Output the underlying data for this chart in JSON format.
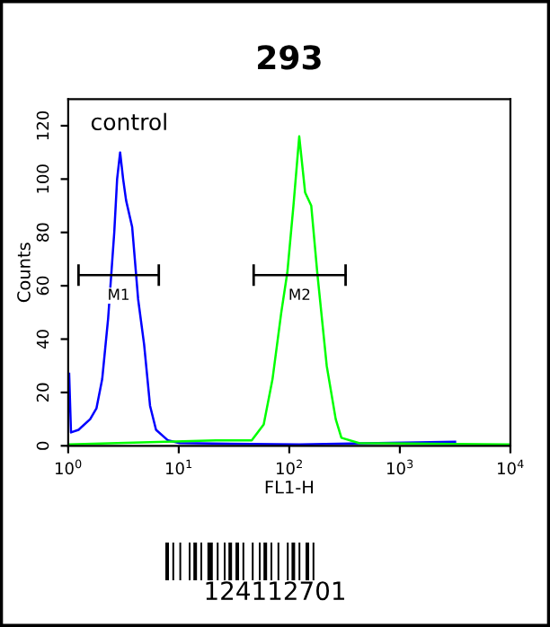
{
  "chart_data": {
    "type": "line",
    "title": "293",
    "xlabel": "FL1-H",
    "ylabel": "Counts",
    "log": "x",
    "xlim": [
      1,
      10000
    ],
    "ylim": [
      0,
      130
    ],
    "xticks": [
      {
        "value": 1,
        "label": "10$^{0}$"
      },
      {
        "value": 10,
        "label": "10$^{1}$"
      },
      {
        "value": 100,
        "label": "10$^{2}$"
      },
      {
        "value": 1000,
        "label": "10$^{3}$"
      },
      {
        "value": 10000,
        "label": "10$^{4}$"
      }
    ],
    "yticks": [
      0,
      20,
      40,
      60,
      80,
      100,
      120
    ],
    "grid": false,
    "legend": false,
    "marker": "none",
    "line_style": "solid",
    "series": [
      {
        "color": "#0000ff",
        "x": [
          1.02,
          1.06,
          1.24,
          1.58,
          1.8,
          2.03,
          2.3,
          2.61,
          2.77,
          2.95,
          3.14,
          3.34,
          3.79,
          4.29,
          4.86,
          5.5,
          6.23,
          8.0,
          10.2,
          123,
          3160
        ],
        "values": [
          27,
          5,
          6,
          10,
          14,
          25,
          48,
          80,
          100,
          110,
          100,
          92,
          82,
          55,
          38,
          15,
          6,
          2,
          1,
          0.5,
          1.5
        ]
      },
      {
        "color": "#00ff00",
        "x": [
          1,
          21.6,
          45.7,
          58.7,
          70.5,
          84.6,
          96,
          109,
          123,
          139,
          158,
          179,
          218,
          263,
          296,
          427,
          10000
        ],
        "values": [
          0.5,
          2,
          2,
          8,
          25,
          50,
          65,
          90,
          116,
          95,
          90,
          65,
          30,
          10,
          3,
          1,
          0.5
        ]
      },
      {
        "type": "line",
        "color": "#000000",
        "x": [
          1.24,
          6.6
        ],
        "values": [
          64,
          64
        ],
        "errors": [
          4,
          4
        ]
      },
      {
        "type": "line",
        "color": "#000000",
        "x": [
          47.6,
          323
        ],
        "values": [
          64,
          64
        ],
        "errors": [
          4,
          4
        ]
      }
    ],
    "annotations": [
      "control",
      "M1",
      "M2",
      "124112701"
    ]
  }
}
